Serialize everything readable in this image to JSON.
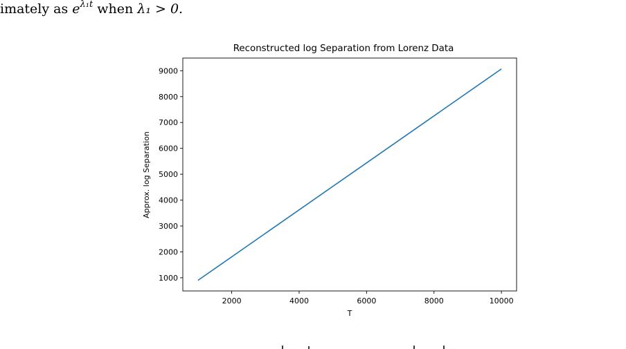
{
  "text": {
    "preamble": "imately as ",
    "exp_base": "e",
    "exp_power": "λ₁t",
    "condition_pre": " when ",
    "condition_math": "λ₁ > 0."
  },
  "colors": {
    "line": "#1f77b4",
    "axes": "#000000",
    "background": "#ffffff"
  },
  "chart_data": {
    "type": "line",
    "title": "Reconstructed log Separation from Lorenz Data",
    "xlabel": "T",
    "ylabel": "Approx. log Separation",
    "xlim": [
      550,
      10450
    ],
    "ylim": [
      490,
      9490
    ],
    "xticks": [
      2000,
      4000,
      6000,
      8000,
      10000
    ],
    "yticks": [
      1000,
      2000,
      3000,
      4000,
      5000,
      6000,
      7000,
      8000,
      9000
    ],
    "grid": false,
    "series": [
      {
        "x": [
          1000,
          10000
        ],
        "y": [
          900,
          9070
        ]
      }
    ]
  }
}
